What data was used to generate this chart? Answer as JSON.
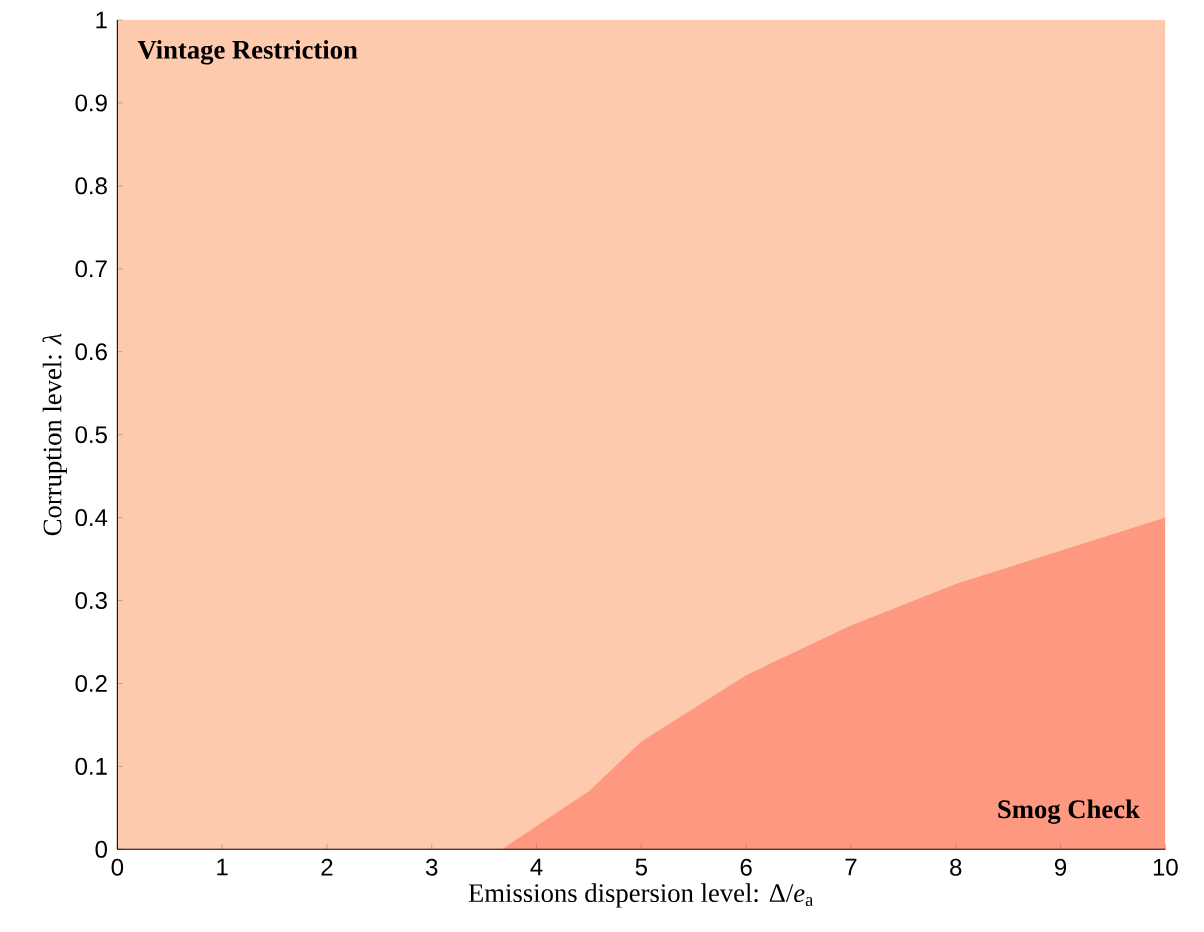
{
  "chart_data": {
    "type": "area",
    "xlabel": "Emissions dispersion level: Δ/*e*$_{a}$",
    "ylabel": "Corruption level: *λ*",
    "x": [
      0,
      3.67,
      4.5,
      5,
      6,
      7,
      8,
      9,
      10
    ],
    "series": [
      {
        "name": "Smog Check",
        "color": "#fe9880",
        "values": [
          0,
          0,
          0.07,
          0.13,
          0.21,
          0.27,
          0.32,
          0.36,
          0.4
        ]
      }
    ],
    "bands": [
      {
        "axis": "y",
        "from": 0,
        "to": 1,
        "label": "Vintage Restriction",
        "color": "#fecaae"
      }
    ],
    "xlim": [
      0,
      10
    ],
    "ylim": [
      0,
      1
    ],
    "xticks": [
      0,
      1,
      2,
      3,
      4,
      5,
      6,
      7,
      8,
      9,
      10
    ],
    "yticks": [
      0,
      0.1,
      0.2,
      0.3,
      0.4,
      0.5,
      0.6,
      0.7,
      0.8,
      0.9,
      1
    ]
  }
}
